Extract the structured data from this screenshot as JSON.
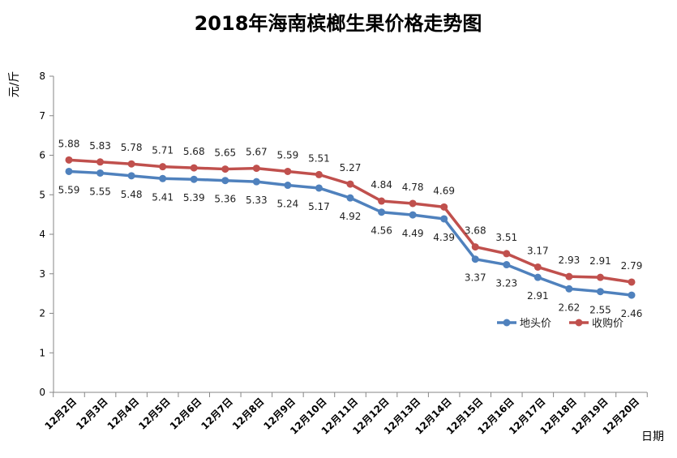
{
  "chart_data": {
    "type": "line",
    "title": "2018年海南槟榔生果价格走势图",
    "xlabel": "日期",
    "ylabel": "元/斤",
    "ylim": [
      0,
      8
    ],
    "yticks": [
      0,
      1,
      2,
      3,
      4,
      5,
      6,
      7,
      8
    ],
    "grid": false,
    "legend_position": "lower-right",
    "categories": [
      "12月2日",
      "12月3日",
      "12月4日",
      "12月5日",
      "12月6日",
      "12月7日",
      "12月8日",
      "12月9日",
      "12月10日",
      "12月11日",
      "12月12日",
      "12月13日",
      "12月14日",
      "12月15日",
      "12月16日",
      "12月17日",
      "12月18日",
      "12月19日",
      "12月20日"
    ],
    "series": [
      {
        "name": "地头价",
        "color": "#4F81BD",
        "values": [
          5.59,
          5.55,
          5.48,
          5.41,
          5.39,
          5.36,
          5.33,
          5.24,
          5.17,
          4.92,
          4.56,
          4.49,
          4.39,
          3.37,
          3.23,
          2.91,
          2.62,
          2.55,
          2.46
        ]
      },
      {
        "name": "收购价",
        "color": "#C0504D",
        "values": [
          5.88,
          5.83,
          5.78,
          5.71,
          5.68,
          5.65,
          5.67,
          5.59,
          5.51,
          5.27,
          4.84,
          4.78,
          4.69,
          3.68,
          3.51,
          3.17,
          2.93,
          2.91,
          2.79
        ]
      }
    ]
  }
}
